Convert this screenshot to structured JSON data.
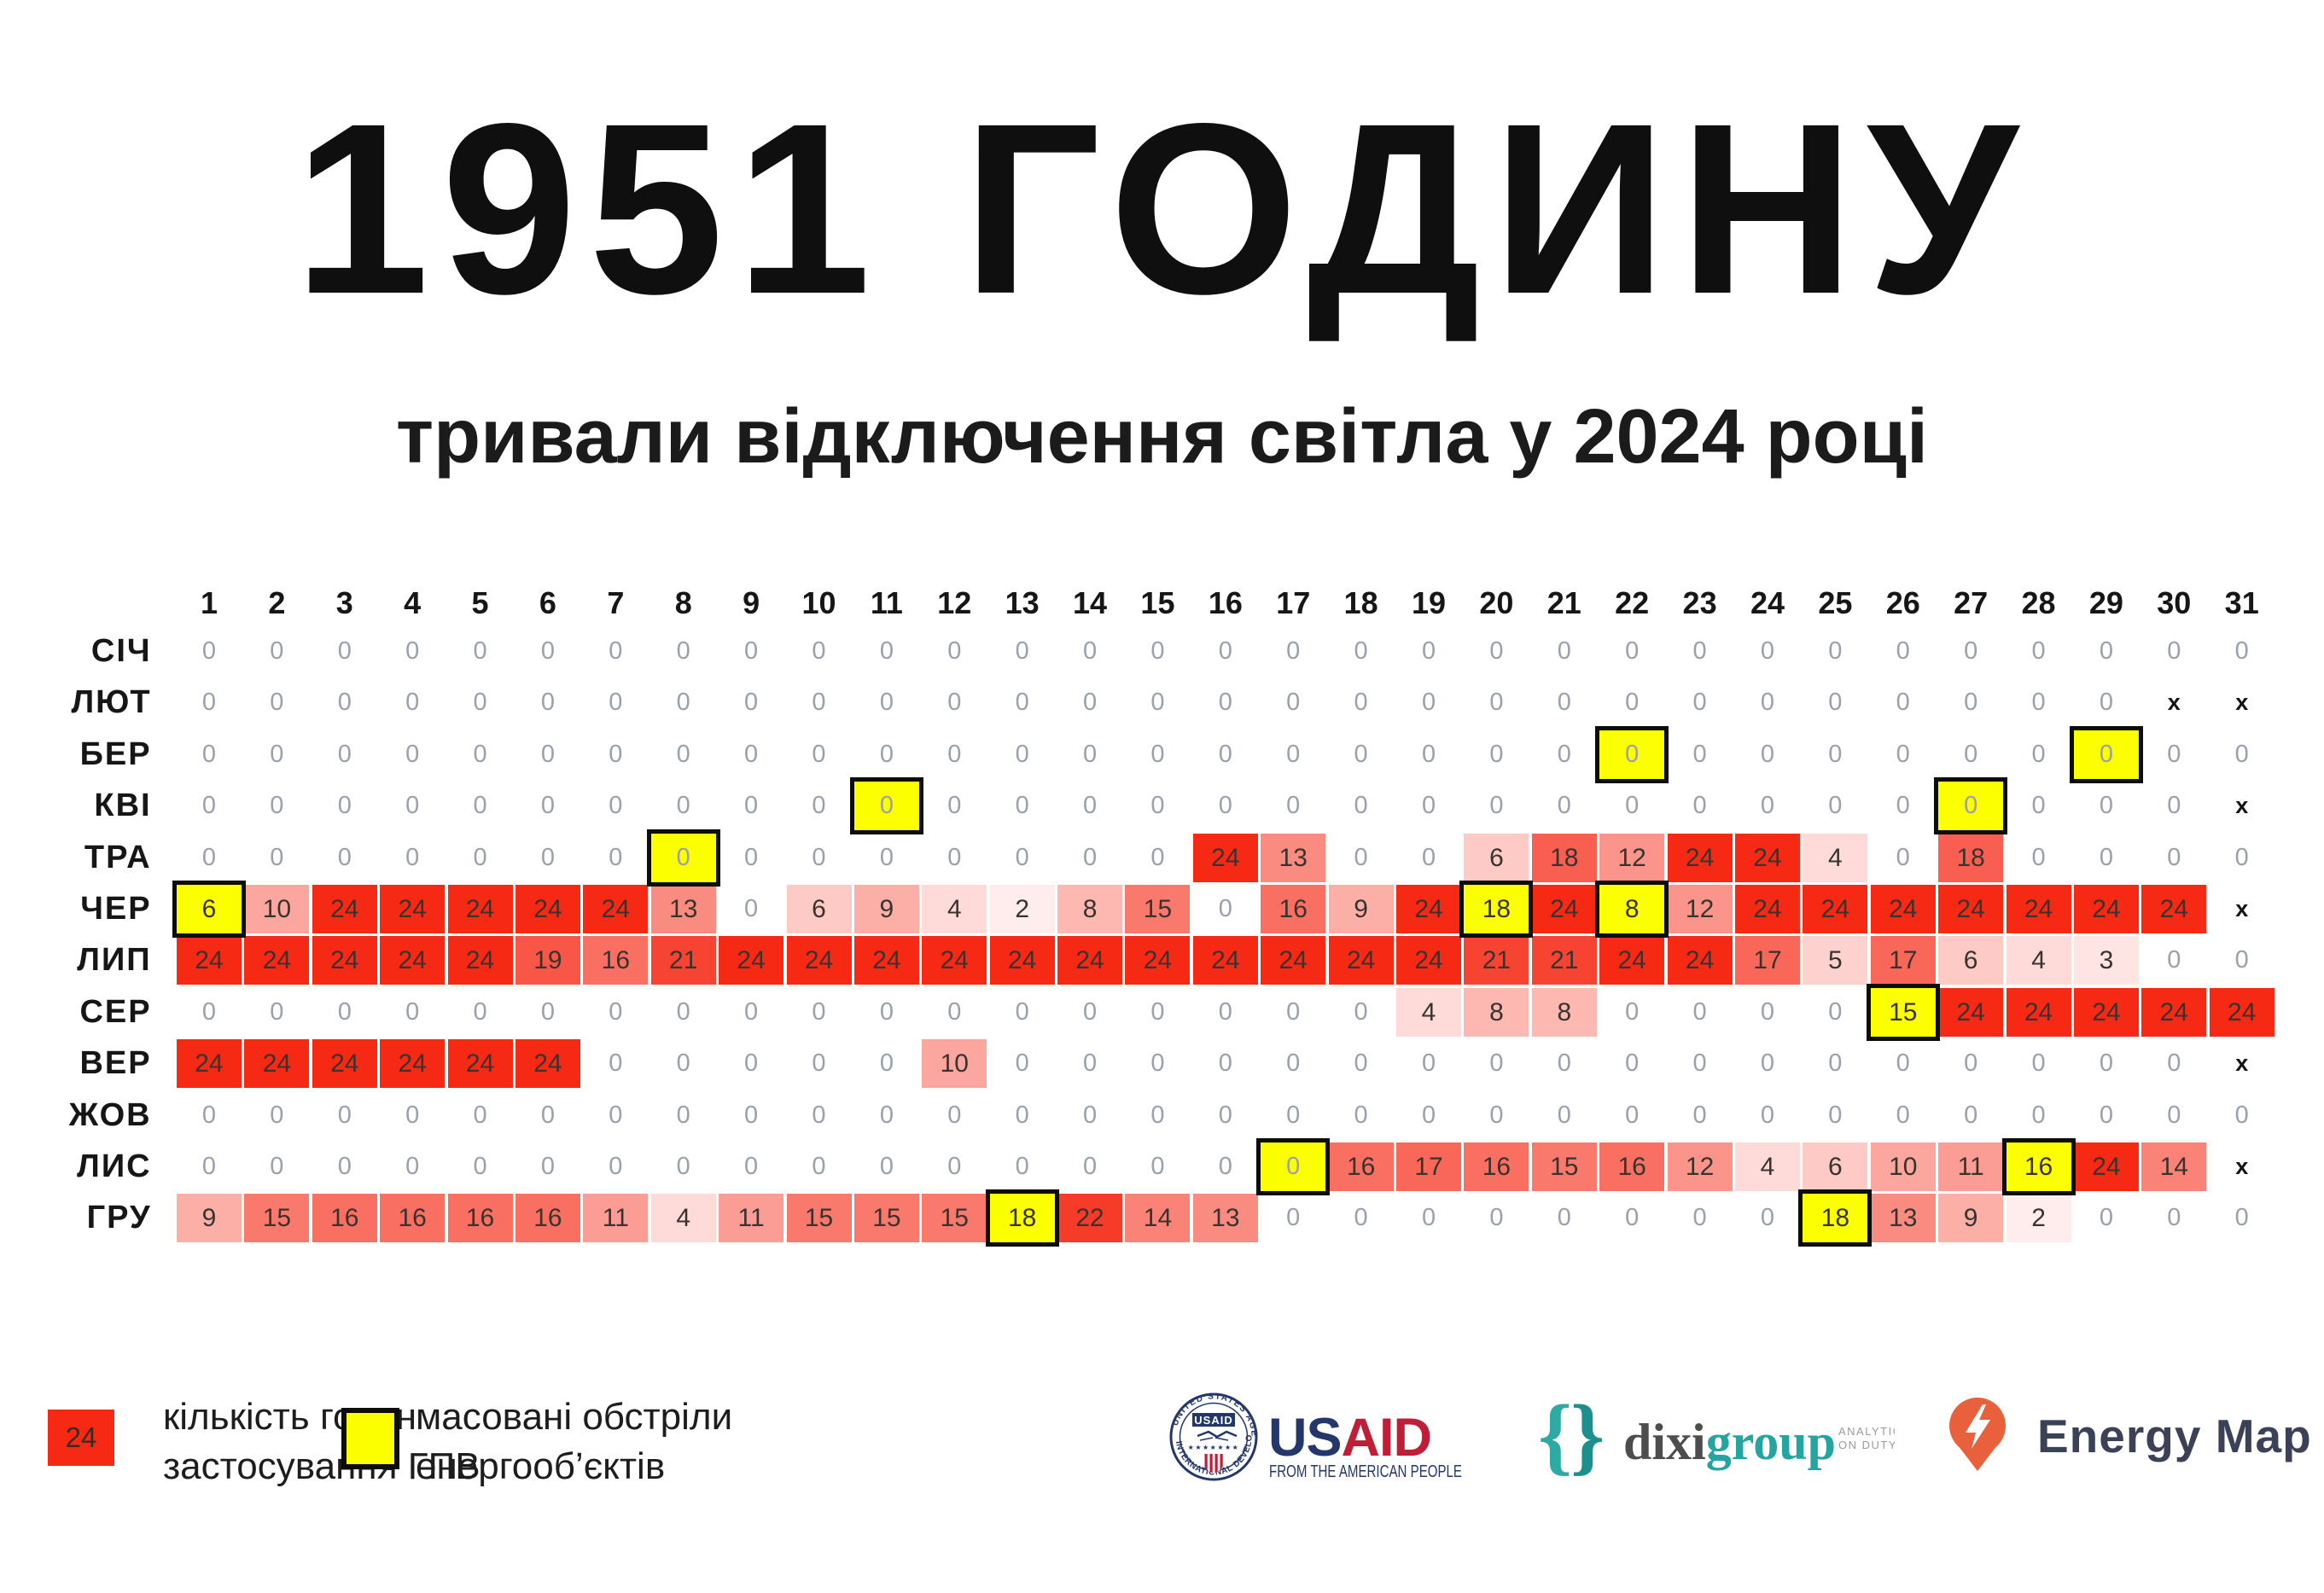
{
  "title": {
    "main": "1951 ГОДИНУ",
    "subtitle": "тривали відключення світла у 2024 році"
  },
  "legend": {
    "hours_swatch_value": "24",
    "hours_label_line1": "кількість годин",
    "hours_label_line2": "застосування ГПВ",
    "attacks_label_line1": "масовані обстріли",
    "attacks_label_line2": "енергооб’єктів"
  },
  "logos": {
    "usaid": {
      "seal_label": "USAID",
      "seal_top": "UNITED STATES AGENCY",
      "seal_bottom": "INTERNATIONAL DEVELOPMENT",
      "wordmark_us": "US",
      "wordmark_aid": "AID",
      "tagline": "FROM THE AMERICAN PEOPLE"
    },
    "dixi": {
      "name_dark": "dixi",
      "name_teal": "group",
      "tagline_line1": "ANALYTICS",
      "tagline_line2": "ON DUTY"
    },
    "energy_map": {
      "name": "Energy Map"
    }
  },
  "colors": {
    "max_red": "#F62915",
    "attack_yellow": "#FCFF00",
    "zero_text": "#9AA1AC",
    "value_text": "#38332F",
    "usaid_navy": "#24376B",
    "usaid_red": "#C01D37",
    "dixi_gray": "#4D4D4D",
    "dixi_teal": "#25A5A1",
    "energy_orange": "#E8603C",
    "energy_navy": "#3B4157"
  },
  "chart_data": {
    "type": "heatmap",
    "title": "1951 ГОДИНУ — тривали відключення світла у 2024 році",
    "legend": [
      "кількість годин застосування ГПВ",
      "масовані обстріли енергооб’єктів"
    ],
    "value_max": 24,
    "days": [
      1,
      2,
      3,
      4,
      5,
      6,
      7,
      8,
      9,
      10,
      11,
      12,
      13,
      14,
      15,
      16,
      17,
      18,
      19,
      20,
      21,
      22,
      23,
      24,
      25,
      26,
      27,
      28,
      29,
      30,
      31
    ],
    "months": [
      {
        "label": "СІЧ",
        "values": [
          0,
          0,
          0,
          0,
          0,
          0,
          0,
          0,
          0,
          0,
          0,
          0,
          0,
          0,
          0,
          0,
          0,
          0,
          0,
          0,
          0,
          0,
          0,
          0,
          0,
          0,
          0,
          0,
          0,
          0,
          0
        ],
        "attack_days": []
      },
      {
        "label": "ЛЮТ",
        "values": [
          0,
          0,
          0,
          0,
          0,
          0,
          0,
          0,
          0,
          0,
          0,
          0,
          0,
          0,
          0,
          0,
          0,
          0,
          0,
          0,
          0,
          0,
          0,
          0,
          0,
          0,
          0,
          0,
          0,
          "x",
          "x"
        ],
        "attack_days": []
      },
      {
        "label": "БЕР",
        "values": [
          0,
          0,
          0,
          0,
          0,
          0,
          0,
          0,
          0,
          0,
          0,
          0,
          0,
          0,
          0,
          0,
          0,
          0,
          0,
          0,
          0,
          0,
          0,
          0,
          0,
          0,
          0,
          0,
          0,
          0,
          0
        ],
        "attack_days": [
          22,
          29
        ]
      },
      {
        "label": "КВІ",
        "values": [
          0,
          0,
          0,
          0,
          0,
          0,
          0,
          0,
          0,
          0,
          0,
          0,
          0,
          0,
          0,
          0,
          0,
          0,
          0,
          0,
          0,
          0,
          0,
          0,
          0,
          0,
          0,
          0,
          0,
          0,
          "x"
        ],
        "attack_days": [
          11,
          27
        ]
      },
      {
        "label": "ТРА",
        "values": [
          0,
          0,
          0,
          0,
          0,
          0,
          0,
          0,
          0,
          0,
          0,
          0,
          0,
          0,
          0,
          24,
          13,
          0,
          0,
          6,
          18,
          12,
          24,
          24,
          4,
          0,
          18,
          0,
          0,
          0,
          0
        ],
        "attack_days": [
          8
        ]
      },
      {
        "label": "ЧЕР",
        "values": [
          6,
          10,
          24,
          24,
          24,
          24,
          24,
          13,
          0,
          6,
          9,
          4,
          2,
          8,
          15,
          0,
          16,
          9,
          24,
          18,
          24,
          8,
          12,
          24,
          24,
          24,
          24,
          24,
          24,
          24,
          "x"
        ],
        "attack_days": [
          1,
          20,
          22
        ]
      },
      {
        "label": "ЛИП",
        "values": [
          24,
          24,
          24,
          24,
          24,
          19,
          16,
          21,
          24,
          24,
          24,
          24,
          24,
          24,
          24,
          24,
          24,
          24,
          24,
          21,
          21,
          24,
          24,
          17,
          5,
          17,
          6,
          4,
          3,
          0,
          0
        ],
        "attack_days": []
      },
      {
        "label": "СЕР",
        "values": [
          0,
          0,
          0,
          0,
          0,
          0,
          0,
          0,
          0,
          0,
          0,
          0,
          0,
          0,
          0,
          0,
          0,
          0,
          4,
          8,
          8,
          0,
          0,
          0,
          0,
          15,
          24,
          24,
          24,
          24,
          24
        ],
        "attack_days": [
          26
        ]
      },
      {
        "label": "ВЕР",
        "values": [
          24,
          24,
          24,
          24,
          24,
          24,
          0,
          0,
          0,
          0,
          0,
          10,
          0,
          0,
          0,
          0,
          0,
          0,
          0,
          0,
          0,
          0,
          0,
          0,
          0,
          0,
          0,
          0,
          0,
          0,
          "x"
        ],
        "attack_days": []
      },
      {
        "label": "ЖОВ",
        "values": [
          0,
          0,
          0,
          0,
          0,
          0,
          0,
          0,
          0,
          0,
          0,
          0,
          0,
          0,
          0,
          0,
          0,
          0,
          0,
          0,
          0,
          0,
          0,
          0,
          0,
          0,
          0,
          0,
          0,
          0,
          0
        ],
        "attack_days": []
      },
      {
        "label": "ЛИС",
        "values": [
          0,
          0,
          0,
          0,
          0,
          0,
          0,
          0,
          0,
          0,
          0,
          0,
          0,
          0,
          0,
          0,
          0,
          16,
          17,
          16,
          15,
          16,
          12,
          4,
          6,
          10,
          11,
          16,
          24,
          14,
          "x"
        ],
        "attack_days": [
          17,
          28
        ]
      },
      {
        "label": "ГРУ",
        "values": [
          9,
          15,
          16,
          16,
          16,
          16,
          11,
          4,
          11,
          15,
          15,
          15,
          18,
          22,
          14,
          13,
          0,
          0,
          0,
          0,
          0,
          0,
          0,
          0,
          18,
          13,
          9,
          2,
          0,
          0,
          0
        ],
        "attack_days": [
          13,
          25
        ]
      }
    ]
  }
}
